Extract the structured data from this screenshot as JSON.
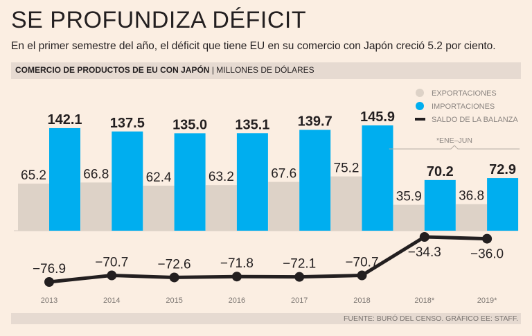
{
  "title": "SE PROFUNDIZA DÉFICIT",
  "subtitle": "En el primer semestre del año, el déficit que tiene EU en su comercio con Japón creció 5.2 por ciento.",
  "header_bold": "COMERCIO DE PRODUCTOS DE EU CON JAPÓN",
  "header_separator": "|",
  "header_unit": "MILLONES DE DÓLARES",
  "footer": "FUENTE: BURÓ DEL CENSO. GRÁFICO EE: STAFF.",
  "colors": {
    "exports": "#ddd2c7",
    "imports": "#00aeef",
    "balance": "#231f20",
    "background": "#fbeee2"
  },
  "chart_data": {
    "type": "bar",
    "title": "COMERCIO DE PRODUCTOS DE EU CON JAPÓN",
    "ylabel": "MILLONES DE DÓLARES",
    "categories": [
      "2013",
      "2014",
      "2015",
      "2016",
      "2017",
      "2018",
      "2018*",
      "2019*"
    ],
    "series": [
      {
        "name": "EXPORTACIONES",
        "values": [
          65.2,
          66.8,
          62.4,
          63.2,
          67.6,
          75.2,
          35.9,
          36.8
        ],
        "labels": [
          "65.2",
          "66.8",
          "62.4",
          "63.2",
          "67.6",
          "75.2",
          "35.9",
          "36.8"
        ]
      },
      {
        "name": "IMPORTACIONES",
        "values": [
          142.1,
          137.5,
          135.0,
          135.1,
          139.7,
          145.9,
          70.2,
          72.9
        ],
        "labels": [
          "142.1",
          "137.5",
          "135.0",
          "135.1",
          "139.7",
          "145.9",
          "70.2",
          "72.9"
        ]
      },
      {
        "name": "SALDO DE LA BALANZA",
        "type": "line",
        "values": [
          -76.9,
          -70.7,
          -72.6,
          -71.8,
          -72.1,
          -70.7,
          -34.3,
          -36.0
        ],
        "labels": [
          "−76.9",
          "−70.7",
          "−72.6",
          "−71.8",
          "−72.1",
          "−70.7",
          "−34.3",
          "−36.0"
        ]
      }
    ],
    "legend": [
      "EXPORTACIONES",
      "IMPORTACIONES",
      "SALDO DE LA BALANZA"
    ],
    "legend_position": "top-right",
    "annotation": "*ENE–JUN",
    "ylim": [
      0,
      150
    ]
  }
}
